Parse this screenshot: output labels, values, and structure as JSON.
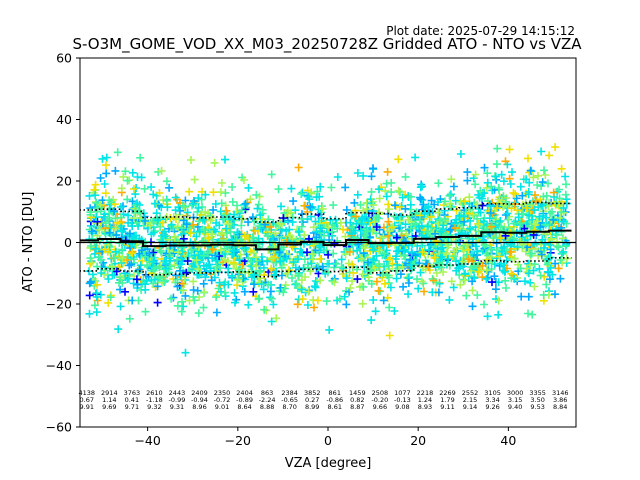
{
  "chart_data": {
    "type": "scatter",
    "title": "S-O3M_GOME_VOD_XX_M03_20250728Z Gridded ATO - NTO vs VZA",
    "plot_date": "Plot date: 2025-07-29 14:15:12",
    "xlabel": "VZA [degree]",
    "ylabel": "ATO - NTO [DU]",
    "xlim": [
      -55,
      55
    ],
    "ylim": [
      -60,
      60
    ],
    "xticks": [
      -40,
      -20,
      0,
      20,
      40
    ],
    "yticks": [
      -60,
      -40,
      -20,
      0,
      20,
      40,
      60
    ],
    "grid": false,
    "marker": "+",
    "colormap_colors": [
      "#0000ff",
      "#00aaff",
      "#00e5e5",
      "#44f5a0",
      "#aaf555",
      "#f0e000",
      "#ffaa00"
    ],
    "zero_line": 0,
    "bins": {
      "vza": [
        -53.5,
        -48.5,
        -43.5,
        -38.5,
        -33.5,
        -28.5,
        -23.5,
        -18.5,
        -13.5,
        -8.5,
        -3.5,
        1.5,
        6.5,
        11.5,
        16.5,
        21.5,
        26.5,
        31.5,
        36.5,
        41.5,
        46.5,
        51.5
      ],
      "count": [
        4138,
        2914,
        3763,
        2610,
        2443,
        2409,
        2350,
        2404,
        863,
        2384,
        3852,
        861,
        1459,
        2508,
        1077,
        2218,
        2269,
        2552,
        3105,
        3000,
        3355,
        3146
      ],
      "mean": [
        0.67,
        1.14,
        0.41,
        -1.18,
        -0.99,
        -0.94,
        -0.72,
        -0.89,
        -2.24,
        -0.65,
        0.27,
        -0.86,
        0.82,
        -0.2,
        -0.13,
        1.24,
        1.79,
        2.15,
        3.34,
        3.15,
        3.5,
        3.86
      ],
      "std": [
        9.91,
        9.69,
        9.71,
        9.32,
        9.31,
        8.96,
        9.01,
        8.64,
        8.88,
        8.7,
        8.99,
        8.61,
        8.87,
        9.66,
        9.08,
        8.93,
        9.11,
        9.14,
        9.26,
        9.4,
        9.53,
        8.84
      ]
    }
  }
}
